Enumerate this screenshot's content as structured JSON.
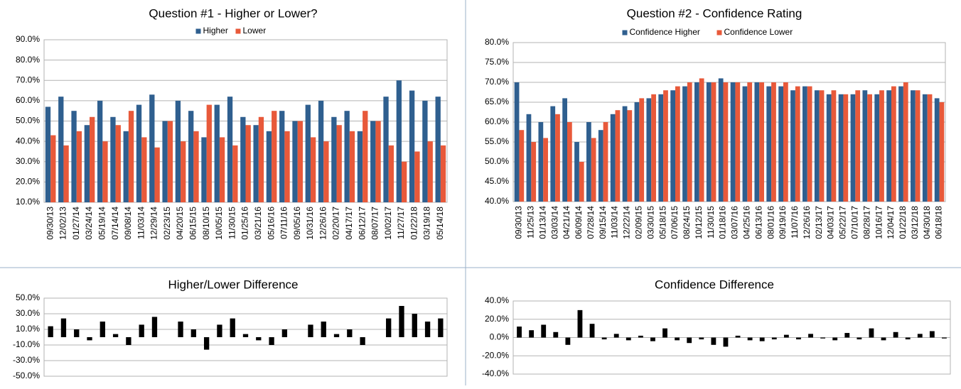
{
  "chart_data": [
    {
      "type": "bar",
      "title": "Question #1 - Higher or Lower?",
      "categories": [
        "09/30/13",
        "12/02/13",
        "01/27/14",
        "03/24/14",
        "05/19/14",
        "07/14/14",
        "09/08/14",
        "11/03/14",
        "12/29/14",
        "02/23/15",
        "04/20/15",
        "06/15/15",
        "08/10/15",
        "10/05/15",
        "11/30/15",
        "01/25/16",
        "03/21/16",
        "05/16/16",
        "07/11/16",
        "09/05/16",
        "10/31/16",
        "12/26/16",
        "02/20/17",
        "04/17/17",
        "06/12/17",
        "08/07/17",
        "10/02/17",
        "11/27/17",
        "01/22/18",
        "03/19/18",
        "05/14/18"
      ],
      "series": [
        {
          "name": "Higher",
          "color": "#2f5f8f",
          "values": [
            57,
            62,
            55,
            48,
            60,
            52,
            45,
            58,
            63,
            50,
            60,
            55,
            42,
            58,
            62,
            52,
            48,
            45,
            55,
            50,
            58,
            60,
            52,
            55,
            45,
            50,
            62,
            70,
            65,
            60,
            62
          ]
        },
        {
          "name": "Lower",
          "color": "#e8593a",
          "values": [
            43,
            38,
            45,
            52,
            40,
            48,
            55,
            42,
            37,
            50,
            40,
            45,
            58,
            42,
            38,
            48,
            52,
            55,
            45,
            50,
            42,
            40,
            48,
            45,
            55,
            50,
            38,
            30,
            35,
            40,
            38
          ]
        }
      ],
      "ylim": [
        10,
        90
      ],
      "yticks": [
        {
          "value": 10,
          "label": "10.0%"
        },
        {
          "value": 20,
          "label": "20.0%"
        },
        {
          "value": 30,
          "label": "30.0%"
        },
        {
          "value": 40,
          "label": "40.0%"
        },
        {
          "value": 50,
          "label": "50.0%"
        },
        {
          "value": 60,
          "label": "60.0%"
        },
        {
          "value": 70,
          "label": "70.0%"
        },
        {
          "value": 80,
          "label": "80.0%"
        },
        {
          "value": 90,
          "label": "90.0%"
        }
      ],
      "grid": true,
      "legend": "top"
    },
    {
      "type": "bar",
      "title": "Question #2 - Confidence Rating",
      "categories": [
        "09/30/13",
        "11/25/13",
        "01/13/14",
        "03/03/14",
        "04/21/14",
        "06/09/14",
        "07/28/14",
        "09/15/14",
        "11/03/14",
        "12/22/14",
        "02/09/15",
        "03/30/15",
        "05/18/15",
        "07/06/15",
        "08/24/15",
        "10/12/15",
        "11/30/15",
        "01/18/16",
        "03/07/16",
        "04/25/16",
        "06/13/16",
        "08/01/16",
        "09/19/16",
        "11/07/16",
        "12/26/16",
        "02/13/17",
        "04/03/17",
        "05/22/17",
        "07/10/17",
        "08/28/17",
        "10/16/17",
        "12/04/17",
        "01/22/18",
        "03/12/18",
        "04/30/18",
        "06/18/18"
      ],
      "series": [
        {
          "name": "Confidence Higher",
          "color": "#2f5f8f",
          "values": [
            70,
            62,
            60,
            64,
            66,
            55,
            60,
            58,
            62,
            64,
            65,
            66,
            67,
            68,
            69,
            70,
            70,
            71,
            70,
            69,
            70,
            69,
            69,
            68,
            69,
            68,
            67,
            67,
            67,
            68,
            67,
            68,
            69,
            68,
            67,
            66
          ]
        },
        {
          "name": "Confidence Lower",
          "color": "#e8593a",
          "values": [
            58,
            55,
            56,
            62,
            60,
            50,
            56,
            60,
            63,
            63,
            66,
            67,
            68,
            69,
            70,
            71,
            70,
            70,
            70,
            70,
            70,
            70,
            70,
            69,
            69,
            68,
            68,
            67,
            68,
            67,
            68,
            69,
            70,
            68,
            67,
            65
          ]
        }
      ],
      "ylim": [
        40,
        80
      ],
      "yticks": [
        {
          "value": 40,
          "label": "40.0%"
        },
        {
          "value": 45,
          "label": "45.0%"
        },
        {
          "value": 50,
          "label": "50.0%"
        },
        {
          "value": 55,
          "label": "55.0%"
        },
        {
          "value": 60,
          "label": "60.0%"
        },
        {
          "value": 65,
          "label": "65.0%"
        },
        {
          "value": 70,
          "label": "70.0%"
        },
        {
          "value": 75,
          "label": "75.0%"
        },
        {
          "value": 80,
          "label": "80.0%"
        }
      ],
      "grid": true,
      "legend": "top"
    },
    {
      "type": "bar",
      "title": "Higher/Lower Difference",
      "color": "#000000",
      "values": [
        14,
        24,
        10,
        -4,
        20,
        4,
        -10,
        16,
        26,
        0,
        20,
        10,
        -16,
        16,
        24,
        4,
        -4,
        -10,
        10,
        0,
        16,
        20,
        4,
        10,
        -10,
        0,
        24,
        40,
        30,
        20,
        24
      ],
      "ylim": [
        -50,
        50
      ],
      "yticks": [
        {
          "value": -50,
          "label": "-50.0%"
        },
        {
          "value": -30,
          "label": "-30.0%"
        },
        {
          "value": -10,
          "label": "-10.0%"
        },
        {
          "value": 10,
          "label": "10.0%"
        },
        {
          "value": 30,
          "label": "30.0%"
        },
        {
          "value": 50,
          "label": "50.0%"
        }
      ],
      "grid": true
    },
    {
      "type": "bar",
      "title": "Confidence Difference",
      "color": "#000000",
      "values": [
        12,
        8,
        14,
        6,
        -8,
        30,
        15,
        -2,
        4,
        -3,
        2,
        -4,
        10,
        -3,
        -6,
        -2,
        -8,
        -10,
        2,
        -3,
        -4,
        -2,
        3,
        -2,
        4,
        -1,
        -3,
        5,
        -2,
        10,
        -3,
        6,
        -2,
        4,
        7,
        -1
      ],
      "ylim": [
        -40,
        40
      ],
      "yticks": [
        {
          "value": -40,
          "label": "-40.0%"
        },
        {
          "value": -20,
          "label": "-20.0%"
        },
        {
          "value": 0,
          "label": "0.0%"
        },
        {
          "value": 20,
          "label": "20.0%"
        },
        {
          "value": 40,
          "label": "40.0%"
        }
      ],
      "grid": true
    }
  ]
}
